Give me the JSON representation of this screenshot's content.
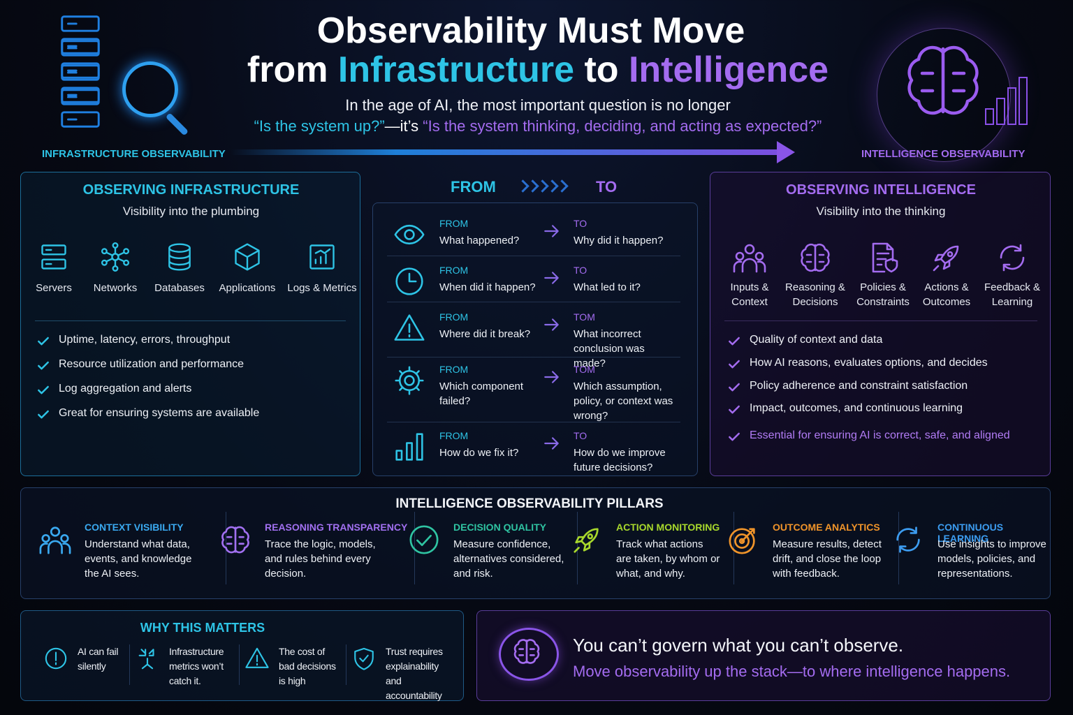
{
  "header": {
    "title_line1": "Observability Must Move",
    "title_line2": [
      "from ",
      "Infrastructure",
      " to ",
      "Intelligence"
    ],
    "subtitle": "In the age of AI, the most important question is no longer",
    "question": [
      "“Is the system up?”",
      "—it’s ",
      "“Is the system thinking, deciding, and acting as expected?”"
    ],
    "left_label": "INFRASTRUCTURE OBSERVABILITY",
    "right_label": "INTELLIGENCE OBSERVABILITY"
  },
  "infra": {
    "title": "OBSERVING INFRASTRUCTURE",
    "subtitle": "Visibility into the plumbing",
    "items": [
      "Servers",
      "Networks",
      "Databases",
      "Applications",
      "Logs & Metrics"
    ],
    "checks": [
      "Uptime, latency, errors, throughput",
      "Resource utilization and performance",
      "Log aggregation and alerts",
      "Great for ensuring systems are available"
    ]
  },
  "shift": {
    "from_header": "FROM",
    "to_header": "TO",
    "rows": [
      {
        "from_label": "FROM",
        "from_text": "What happened?",
        "to_label": "TO",
        "to_text": "Why did it happen?"
      },
      {
        "from_label": "FROM",
        "from_text": "When did it happen?",
        "to_label": "TO",
        "to_text": "What led to it?"
      },
      {
        "from_label": "FROM",
        "from_text": "Where did it break?",
        "to_label": "TOM",
        "to_text": "What incorrect conclusion was made?"
      },
      {
        "from_label": "FROM",
        "from_text": "Which component failed?",
        "to_label": "TOM",
        "to_text": "Which assumption, policy, or context was wrong?"
      },
      {
        "from_label": "FROM",
        "from_text": "How do we fix it?",
        "to_label": "TO",
        "to_text": "How do we improve future decisions?"
      }
    ]
  },
  "intel": {
    "title": "OBSERVING INTELLIGENCE",
    "subtitle": "Visibility into the thinking",
    "items": [
      "Inputs & Context",
      "Reasoning & Decisions",
      "Policies & Constraints",
      "Actions & Outcomes",
      "Feedback & Learning"
    ],
    "checks": [
      "Quality of context and data",
      "How AI reasons, evaluates options, and decides",
      "Policy adherence and constraint satisfaction",
      "Impact, outcomes, and continuous learning",
      "Essential for ensuring AI is correct, safe, and aligned"
    ]
  },
  "pillars": {
    "title": "INTELLIGENCE OBSERVABILITY PILLARS",
    "items": [
      {
        "title": "CONTEXT VISIBILITY",
        "text": "Understand what data, events, and knowledge the AI sees."
      },
      {
        "title": "REASONING TRANSPARENCY",
        "text": "Trace the logic, models, and rules behind every decision."
      },
      {
        "title": "DECISION QUALITY",
        "text": "Measure confidence, alternatives considered, and risk."
      },
      {
        "title": "ACTION MONITORING",
        "text": "Track what actions are taken, by whom or what, and why."
      },
      {
        "title": "OUTCOME ANALYTICS",
        "text": "Measure results, detect drift, and close the loop with feedback."
      },
      {
        "title": "CONTINUOUS LEARNING",
        "text": "Use insights to improve models, policies, and representations."
      }
    ]
  },
  "why": {
    "title": "WHY THIS MATTERS",
    "items": [
      "AI can fail silently",
      "Infrastructure metrics won’t catch it.",
      "The cost of bad decisions is high",
      "Trust requires explainability and accountability"
    ]
  },
  "callout": {
    "headline": "You can’t govern what you can’t observe.",
    "text": "Move observability up the stack—to where intelligence happens."
  }
}
